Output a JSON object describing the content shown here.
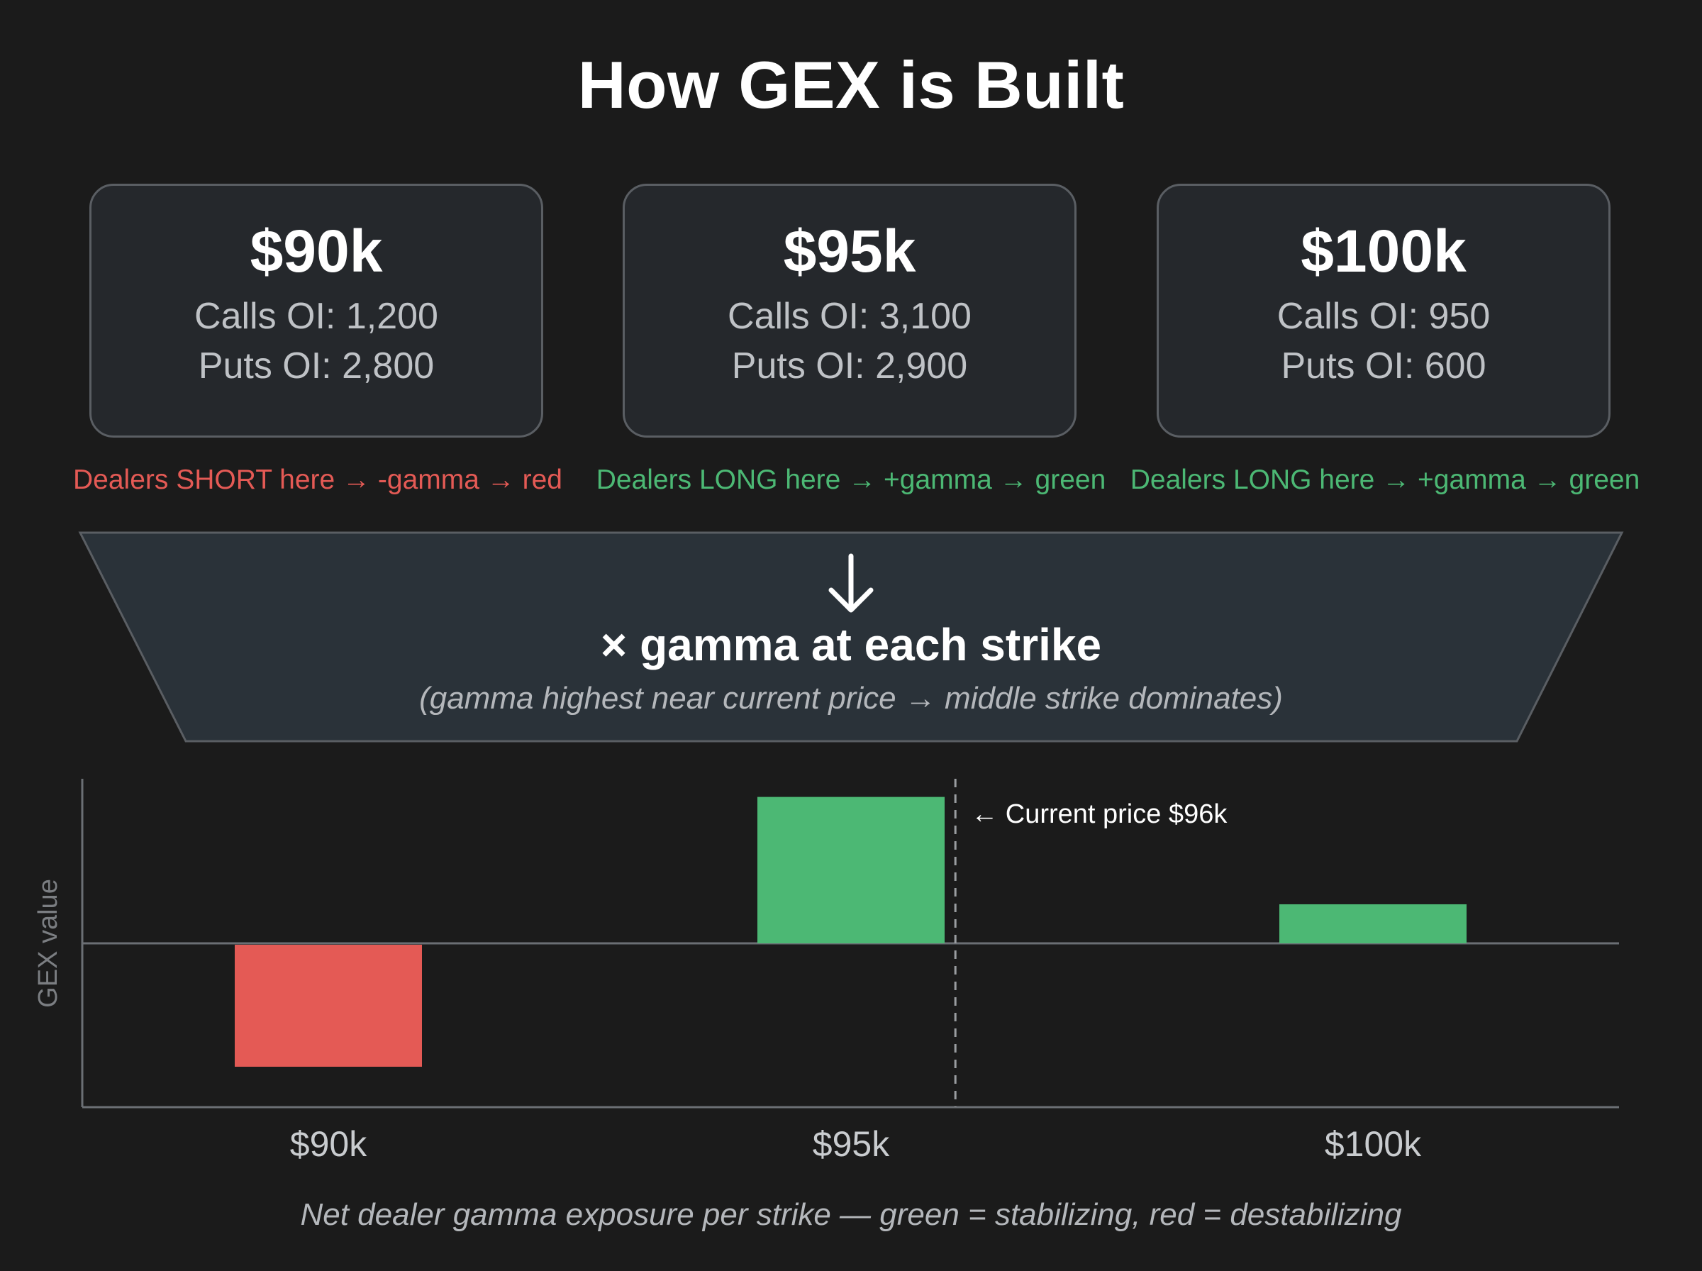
{
  "title": "How GEX is Built",
  "strikes": [
    {
      "label": "$90k",
      "calls": "Calls OI: 1,200",
      "puts": "Puts OI: 2,800",
      "note": "Dealers SHORT here → -gamma → red",
      "note_color": "#e45a55"
    },
    {
      "label": "$95k",
      "calls": "Calls OI: 3,100",
      "puts": "Puts OI: 2,900",
      "note": "Dealers LONG here → +gamma → green",
      "note_color": "#4cb874"
    },
    {
      "label": "$100k",
      "calls": "Calls OI: 950",
      "puts": "Puts OI: 600",
      "note": "Dealers LONG here → +gamma → green",
      "note_color": "#4cb874"
    }
  ],
  "funnel": {
    "arrow_icon": "down-arrow-icon",
    "title": "× gamma at each strike",
    "subtitle": "(gamma highest near current price → middle strike dominates)"
  },
  "chart_data": {
    "type": "bar",
    "categories": [
      "$90k",
      "$95k",
      "$100k"
    ],
    "values": [
      -1.0,
      1.2,
      0.32
    ],
    "colors": [
      "#e45a55",
      "#4cb874",
      "#4cb874"
    ],
    "ylabel": "GEX value",
    "xlabel": "",
    "ylim": [
      -1.35,
      1.35
    ],
    "reference_line": {
      "x": 96,
      "label": "← Current price $96k",
      "style": "dashed"
    },
    "grid": false
  },
  "caption": "Net dealer gamma exposure per strike — green = stabilizing, red = destabilizing",
  "colors": {
    "background": "#1b1b1b",
    "card": "#25282c",
    "border": "#5a5e63",
    "funnel": "#2a3239",
    "negative": "#e45a55",
    "positive": "#4cb874"
  }
}
